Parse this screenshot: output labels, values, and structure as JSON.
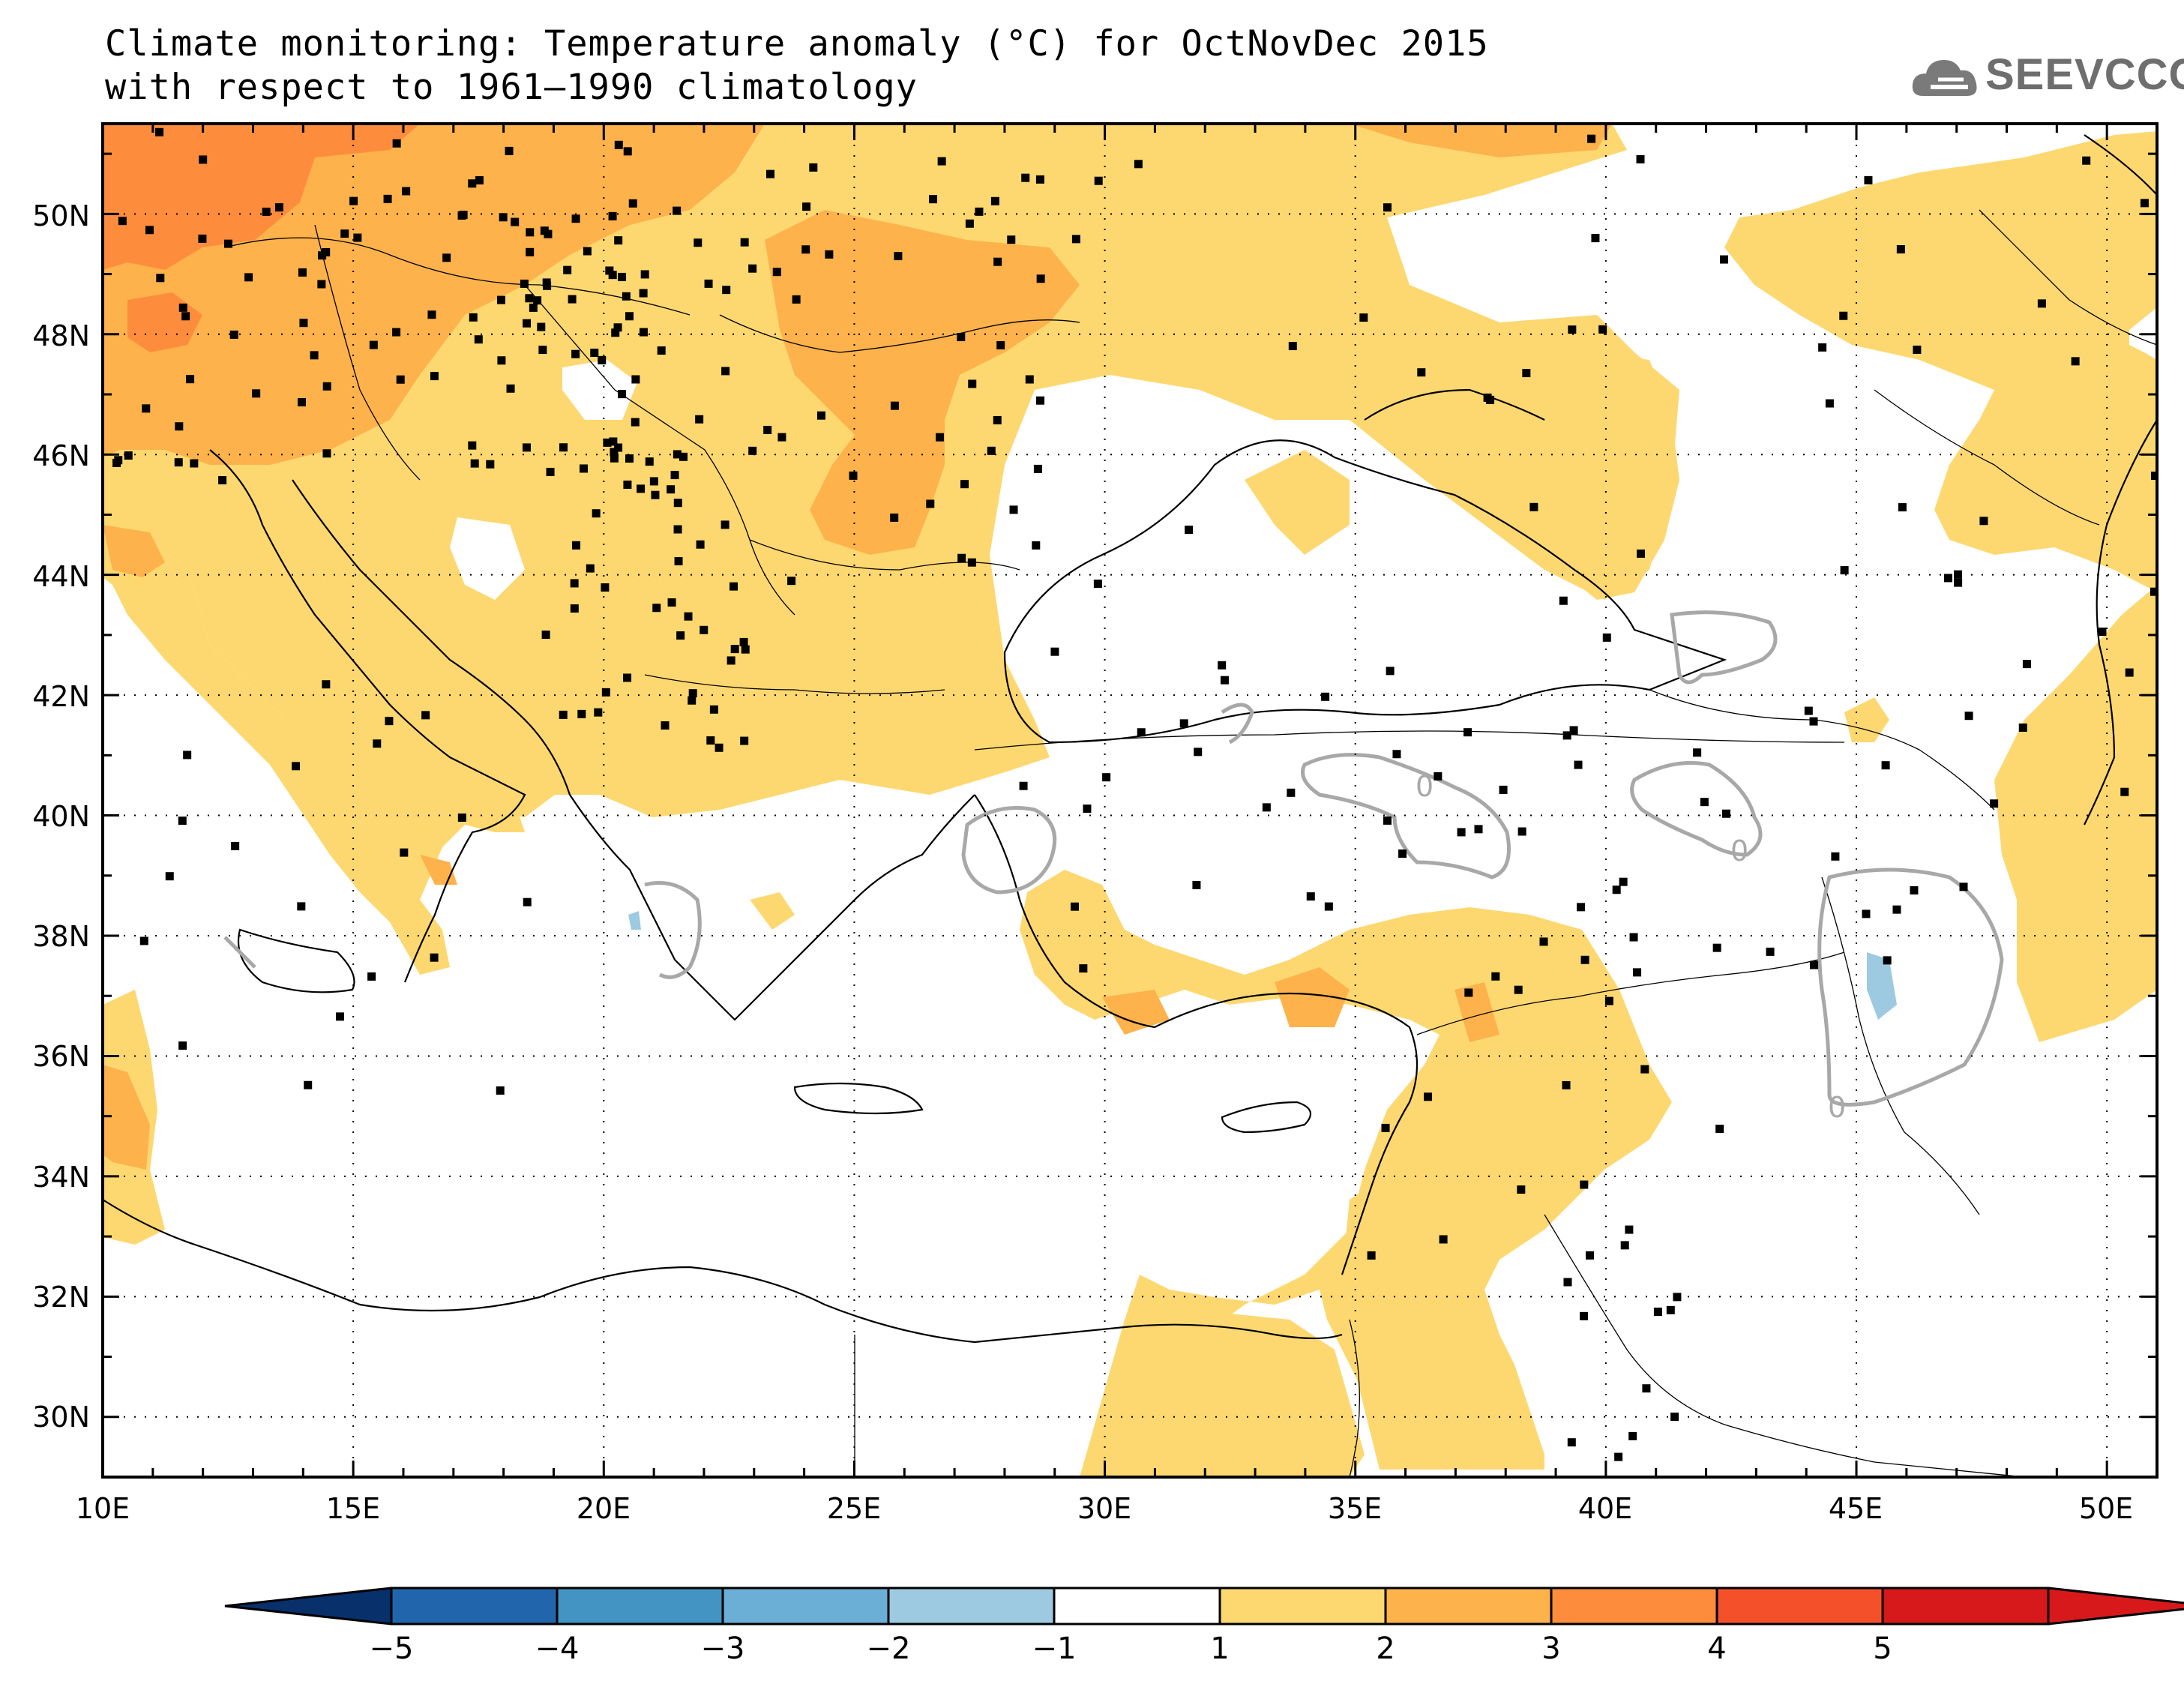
{
  "title": {
    "line1": "Climate monitoring: Temperature anomaly (°C) for OctNovDec 2015",
    "line2": "with respect to 1961–1990 climatology"
  },
  "logo": {
    "text": "SEEVCCC",
    "icon": "cloud-icon"
  },
  "map": {
    "lon_range": [
      10,
      51
    ],
    "lat_range": [
      29,
      51.5
    ],
    "lon_ticks": [
      "10E",
      "15E",
      "20E",
      "25E",
      "30E",
      "35E",
      "40E",
      "45E",
      "50E"
    ],
    "lat_ticks": [
      "30N",
      "32N",
      "34N",
      "36N",
      "38N",
      "40N",
      "42N",
      "44N",
      "46N",
      "48N",
      "50N"
    ],
    "grid": "dotted",
    "contour_label": "0"
  },
  "colorbar": {
    "colors": [
      "#08306b",
      "#2166ac",
      "#4393c3",
      "#6baed6",
      "#9ecae1",
      "#ffffff",
      "#fdd870",
      "#fdb24c",
      "#fd8d3c",
      "#f4512b",
      "#d7191c"
    ],
    "labels": [
      "−5",
      "−4",
      "−3",
      "−2",
      "−1",
      "1",
      "2",
      "3",
      "4",
      "5"
    ]
  }
}
